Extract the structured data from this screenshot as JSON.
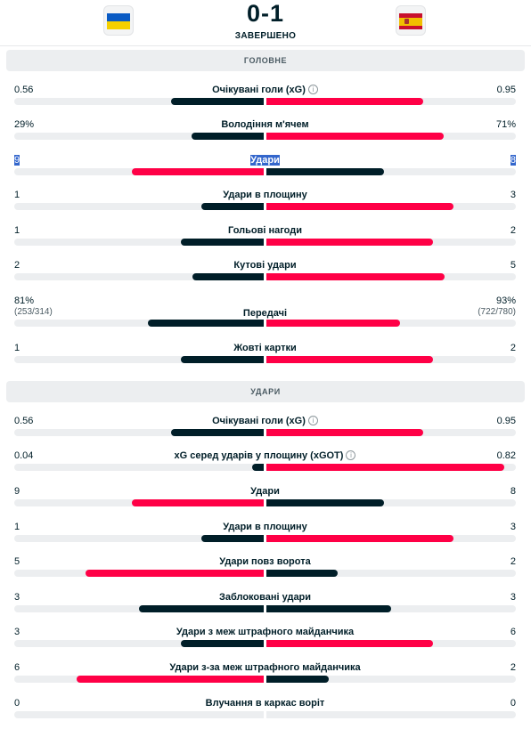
{
  "header": {
    "home_flag": "flag-ukraine",
    "away_flag": "flag-spain",
    "score": "0-1",
    "status": "ЗАВЕРШЕНО"
  },
  "colors": {
    "winner_bar": "#ff0046",
    "loser_bar": "#001e28",
    "track": "#eceef0"
  },
  "sections": [
    {
      "title": "ГОЛОВНЕ",
      "stats": [
        {
          "label": "Очікувані голи (xG)",
          "home": "0.56",
          "away": "0.95",
          "home_val": 0.56,
          "away_val": 0.95,
          "info": true
        },
        {
          "label": "Володіння м'ячем",
          "home": "29%",
          "away": "71%",
          "home_val": 29,
          "away_val": 71
        },
        {
          "label": "Удари",
          "home": "9",
          "away": "8",
          "home_val": 9,
          "away_val": 8,
          "highlighted": true
        },
        {
          "label": "Удари в площину",
          "home": "1",
          "away": "3",
          "home_val": 1,
          "away_val": 3
        },
        {
          "label": "Гольові нагоди",
          "home": "1",
          "away": "2",
          "home_val": 1,
          "away_val": 2
        },
        {
          "label": "Кутові удари",
          "home": "2",
          "away": "5",
          "home_val": 2,
          "away_val": 5
        },
        {
          "label": "Передачі",
          "home": "81%",
          "away": "93%",
          "home_sub": "(253/314)",
          "away_sub": "(722/780)",
          "home_val": 81,
          "away_val": 93
        },
        {
          "label": "Жовті картки",
          "home": "1",
          "away": "2",
          "home_val": 1,
          "away_val": 2
        }
      ]
    },
    {
      "title": "УДАРИ",
      "stats": [
        {
          "label": "Очікувані голи (xG)",
          "home": "0.56",
          "away": "0.95",
          "home_val": 0.56,
          "away_val": 0.95,
          "info": true
        },
        {
          "label": "xG серед ударів у площину (xGOT)",
          "home": "0.04",
          "away": "0.82",
          "home_val": 0.04,
          "away_val": 0.82,
          "info": true
        },
        {
          "label": "Удари",
          "home": "9",
          "away": "8",
          "home_val": 9,
          "away_val": 8
        },
        {
          "label": "Удари в площину",
          "home": "1",
          "away": "3",
          "home_val": 1,
          "away_val": 3
        },
        {
          "label": "Удари повз ворота",
          "home": "5",
          "away": "2",
          "home_val": 5,
          "away_val": 2
        },
        {
          "label": "Заблоковані удари",
          "home": "3",
          "away": "3",
          "home_val": 3,
          "away_val": 3
        },
        {
          "label": "Удари з меж штрафного майданчика",
          "home": "3",
          "away": "6",
          "home_val": 3,
          "away_val": 6
        },
        {
          "label": "Удари з-за меж штрафного майданчика",
          "home": "6",
          "away": "2",
          "home_val": 6,
          "away_val": 2
        },
        {
          "label": "Влучання в каркас воріт",
          "home": "0",
          "away": "0",
          "home_val": 0,
          "away_val": 0
        }
      ]
    }
  ]
}
